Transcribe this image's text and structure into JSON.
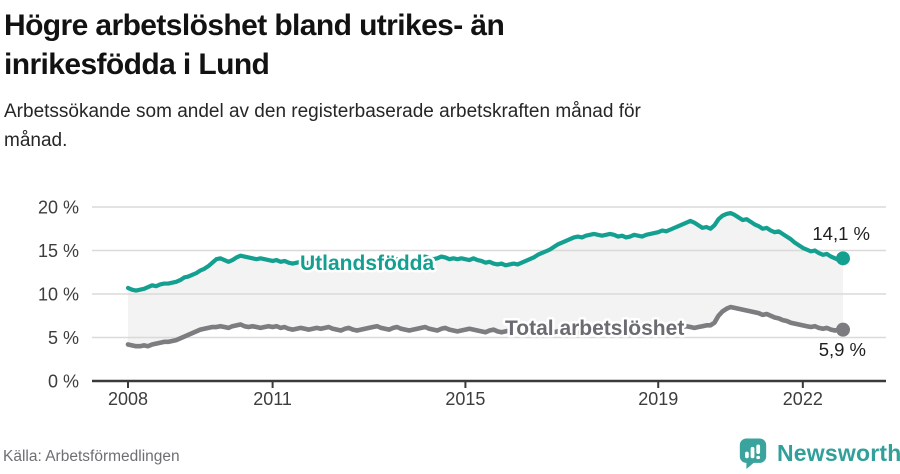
{
  "header": {
    "title_line1": "Högre arbetslöshet bland utrikes- än",
    "title_line2": "inrikesfödda i Lund",
    "subtitle_line1": "Arbetssökande som andel av den registerbaserade arbetskraften månad för",
    "subtitle_line2": "månad."
  },
  "footer": {
    "source": "Källa: Arbetsförmedlingen",
    "brand_name": "Newsworthy"
  },
  "colors": {
    "series_foreign": "#14a090",
    "series_total": "#7c7c81",
    "series_total_label": "#6b6b71",
    "band_fill": "#f3f3f3",
    "grid": "#dadada",
    "axis": "#3a3a3a",
    "brand_teal": "#3aa39d"
  },
  "chart_data": {
    "type": "line",
    "unit": "%",
    "x_frequency": "monthly",
    "ylim": [
      0,
      20
    ],
    "grid": true,
    "ytick_values": [
      0,
      5,
      10,
      15,
      20
    ],
    "ytick_labels": [
      "0 %",
      "5 %",
      "10 %",
      "15 %",
      "20 %"
    ],
    "xticks": [
      {
        "label": "2008",
        "month_index": 0
      },
      {
        "label": "2011",
        "month_index": 36
      },
      {
        "label": "2015",
        "month_index": 84
      },
      {
        "label": "2019",
        "month_index": 132
      },
      {
        "label": "2022",
        "month_index": 168
      }
    ],
    "series": [
      {
        "name": "Utlandsfödda",
        "color_key": "series_foreign",
        "end_label": "14,1 %",
        "end_value": 14.1,
        "values": [
          10.7,
          10.5,
          10.4,
          10.5,
          10.6,
          10.8,
          11.0,
          10.9,
          11.1,
          11.2,
          11.2,
          11.3,
          11.4,
          11.6,
          11.9,
          12.0,
          12.2,
          12.4,
          12.7,
          12.9,
          13.2,
          13.6,
          14.0,
          14.1,
          13.9,
          13.7,
          13.9,
          14.2,
          14.4,
          14.3,
          14.2,
          14.1,
          14.0,
          14.1,
          14.0,
          13.9,
          13.8,
          13.9,
          13.7,
          13.8,
          13.6,
          13.5,
          13.6,
          13.7,
          13.5,
          13.6,
          13.7,
          13.6,
          13.5,
          13.6,
          13.7,
          13.5,
          13.4,
          13.5,
          13.7,
          13.6,
          13.5,
          13.6,
          13.7,
          13.6,
          13.7,
          13.8,
          13.9,
          13.8,
          13.7,
          13.8,
          13.9,
          14.0,
          13.9,
          13.8,
          13.9,
          14.0,
          14.0,
          14.2,
          14.3,
          14.1,
          14.0,
          14.1,
          14.3,
          14.2,
          14.0,
          14.1,
          14.0,
          14.1,
          14.0,
          13.9,
          14.1,
          13.9,
          13.8,
          13.6,
          13.7,
          13.5,
          13.4,
          13.5,
          13.3,
          13.4,
          13.5,
          13.4,
          13.6,
          13.8,
          14.0,
          14.2,
          14.5,
          14.7,
          14.9,
          15.1,
          15.4,
          15.7,
          15.9,
          16.1,
          16.3,
          16.5,
          16.6,
          16.5,
          16.7,
          16.8,
          16.9,
          16.8,
          16.7,
          16.8,
          16.9,
          16.8,
          16.6,
          16.7,
          16.5,
          16.6,
          16.8,
          16.7,
          16.6,
          16.8,
          16.9,
          17.0,
          17.1,
          17.3,
          17.2,
          17.4,
          17.6,
          17.8,
          18.0,
          18.2,
          18.4,
          18.2,
          17.9,
          17.6,
          17.7,
          17.5,
          17.9,
          18.6,
          19.0,
          19.2,
          19.3,
          19.1,
          18.8,
          18.5,
          18.6,
          18.3,
          18.0,
          17.8,
          17.5,
          17.6,
          17.3,
          17.1,
          17.2,
          16.9,
          16.6,
          16.3,
          15.9,
          15.6,
          15.3,
          15.1,
          14.9,
          15.0,
          14.7,
          14.5,
          14.6,
          14.3,
          14.1,
          13.9,
          14.1
        ]
      },
      {
        "name": "Total arbetslöshet",
        "color_key": "series_total",
        "end_label": "5,9 %",
        "end_value": 5.9,
        "values": [
          4.2,
          4.1,
          4.0,
          4.0,
          4.1,
          4.0,
          4.2,
          4.3,
          4.4,
          4.5,
          4.5,
          4.6,
          4.7,
          4.9,
          5.1,
          5.3,
          5.5,
          5.7,
          5.9,
          6.0,
          6.1,
          6.2,
          6.2,
          6.3,
          6.2,
          6.1,
          6.3,
          6.4,
          6.5,
          6.3,
          6.2,
          6.3,
          6.2,
          6.1,
          6.2,
          6.3,
          6.2,
          6.3,
          6.1,
          6.2,
          6.0,
          5.9,
          6.0,
          6.1,
          6.0,
          5.9,
          6.0,
          6.1,
          6.0,
          6.1,
          6.2,
          6.0,
          5.9,
          5.8,
          6.0,
          6.1,
          5.9,
          5.8,
          5.9,
          6.0,
          6.1,
          6.2,
          6.3,
          6.1,
          6.0,
          5.9,
          6.1,
          6.2,
          6.0,
          5.9,
          5.8,
          5.9,
          6.0,
          6.1,
          6.2,
          6.0,
          5.9,
          5.8,
          6.0,
          6.1,
          5.9,
          5.8,
          5.7,
          5.8,
          5.9,
          6.0,
          5.9,
          5.8,
          5.7,
          5.6,
          5.8,
          5.9,
          5.7,
          5.6,
          5.7,
          5.8,
          5.7,
          5.8,
          5.7,
          5.6,
          5.5,
          5.6,
          5.8,
          5.7,
          5.6,
          5.5,
          5.6,
          5.7,
          5.6,
          5.7,
          5.8,
          5.6,
          5.5,
          5.6,
          5.8,
          5.7,
          5.6,
          5.5,
          5.6,
          5.7,
          5.6,
          5.5,
          5.6,
          5.7,
          5.5,
          5.4,
          5.6,
          5.7,
          5.6,
          5.5,
          5.6,
          5.7,
          5.8,
          5.9,
          5.8,
          5.9,
          6.0,
          6.1,
          6.2,
          6.3,
          6.2,
          6.1,
          6.2,
          6.3,
          6.4,
          6.4,
          6.7,
          7.5,
          8.0,
          8.3,
          8.5,
          8.4,
          8.3,
          8.2,
          8.1,
          8.0,
          7.9,
          7.8,
          7.6,
          7.7,
          7.5,
          7.3,
          7.2,
          7.0,
          6.9,
          6.7,
          6.6,
          6.5,
          6.4,
          6.3,
          6.2,
          6.3,
          6.1,
          6.0,
          6.1,
          5.9,
          5.8,
          5.9,
          5.9
        ]
      }
    ]
  }
}
